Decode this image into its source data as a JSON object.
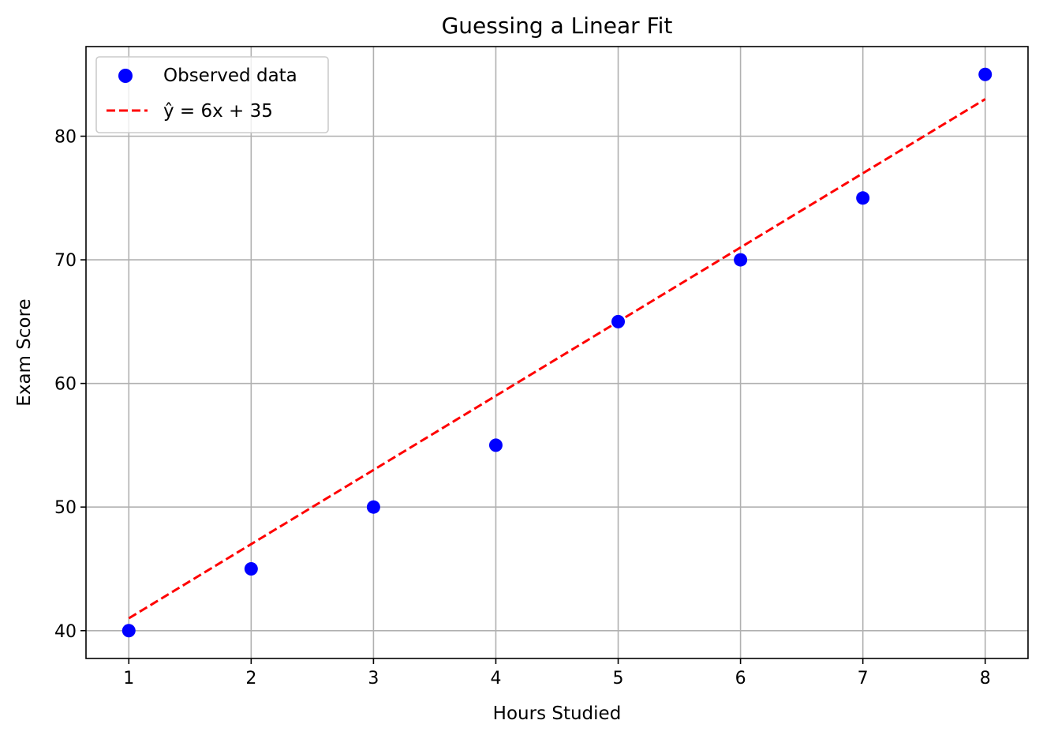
{
  "chart_data": {
    "type": "scatter",
    "title": "Guessing a Linear Fit",
    "xlabel": "Hours Studied",
    "ylabel": "Exam Score",
    "xlim": [
      0.65,
      8.35
    ],
    "ylim": [
      37.75,
      87.25
    ],
    "xticks": [
      1,
      2,
      3,
      4,
      5,
      6,
      7,
      8
    ],
    "yticks": [
      40,
      50,
      60,
      70,
      80
    ],
    "grid": true,
    "legend_position": "top-left",
    "series": [
      {
        "name": "Observed data",
        "kind": "scatter",
        "color": "#0000ff",
        "x": [
          1,
          2,
          3,
          4,
          5,
          6,
          7,
          8
        ],
        "y": [
          40,
          45,
          50,
          55,
          65,
          70,
          75,
          85
        ]
      },
      {
        "name": "ŷ = 6x + 35",
        "kind": "line",
        "style": "dashed",
        "color": "#ff0000",
        "slope": 6,
        "intercept": 35,
        "x": [
          1,
          8
        ],
        "y": [
          41,
          83
        ]
      }
    ]
  }
}
